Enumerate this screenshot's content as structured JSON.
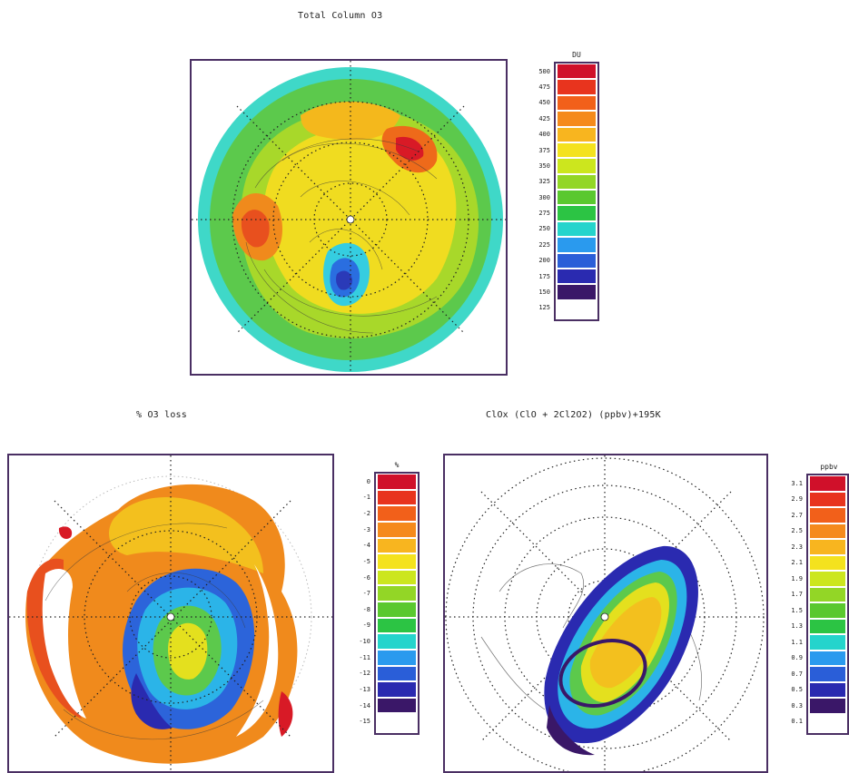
{
  "titles": {
    "top": "Total Column O3",
    "bottom_left": "% O3 loss",
    "bottom_right": "ClOx (ClO + 2Cl2O2) (ppbv)+195K"
  },
  "colorbars": {
    "du": {
      "unit": "DU",
      "labels": [
        "500",
        "475",
        "450",
        "425",
        "400",
        "375",
        "350",
        "325",
        "300",
        "275",
        "250",
        "225",
        "200",
        "175",
        "150",
        "125"
      ],
      "colors": [
        "#d0102a",
        "#e8341e",
        "#f2601a",
        "#f58a1c",
        "#f8b51f",
        "#f4e21e",
        "#cce61e",
        "#93d626",
        "#5ac82f",
        "#2cc444",
        "#25d4cc",
        "#2a9aee",
        "#2a5ed8",
        "#2a2ab0",
        "#3a1768",
        "#ffffff"
      ]
    },
    "pct": {
      "unit": "%",
      "labels": [
        "0",
        "-1",
        "-2",
        "-3",
        "-4",
        "-5",
        "-6",
        "-7",
        "-8",
        "-9",
        "-10",
        "-11",
        "-12",
        "-13",
        "-14",
        "-15"
      ],
      "colors": [
        "#d0102a",
        "#e8341e",
        "#f2601a",
        "#f58a1c",
        "#f8b51f",
        "#f4e21e",
        "#cce61e",
        "#93d626",
        "#5ac82f",
        "#2cc444",
        "#25d4cc",
        "#2a9aee",
        "#2a5ed8",
        "#2a2ab0",
        "#3a1768",
        "#ffffff"
      ]
    },
    "ppbv": {
      "unit": "ppbv",
      "labels": [
        "3.1",
        "2.9",
        "2.7",
        "2.5",
        "2.3",
        "2.1",
        "1.9",
        "1.7",
        "1.5",
        "1.3",
        "1.1",
        "0.9",
        "0.7",
        "0.5",
        "0.3",
        "0.1"
      ],
      "colors": [
        "#d0102a",
        "#e8341e",
        "#f2601a",
        "#f58a1c",
        "#f8b51f",
        "#f4e21e",
        "#cce61e",
        "#93d626",
        "#5ac82f",
        "#2cc444",
        "#25d4cc",
        "#2a9aee",
        "#2a5ed8",
        "#2a2ab0",
        "#3a1768",
        "#ffffff"
      ]
    }
  }
}
